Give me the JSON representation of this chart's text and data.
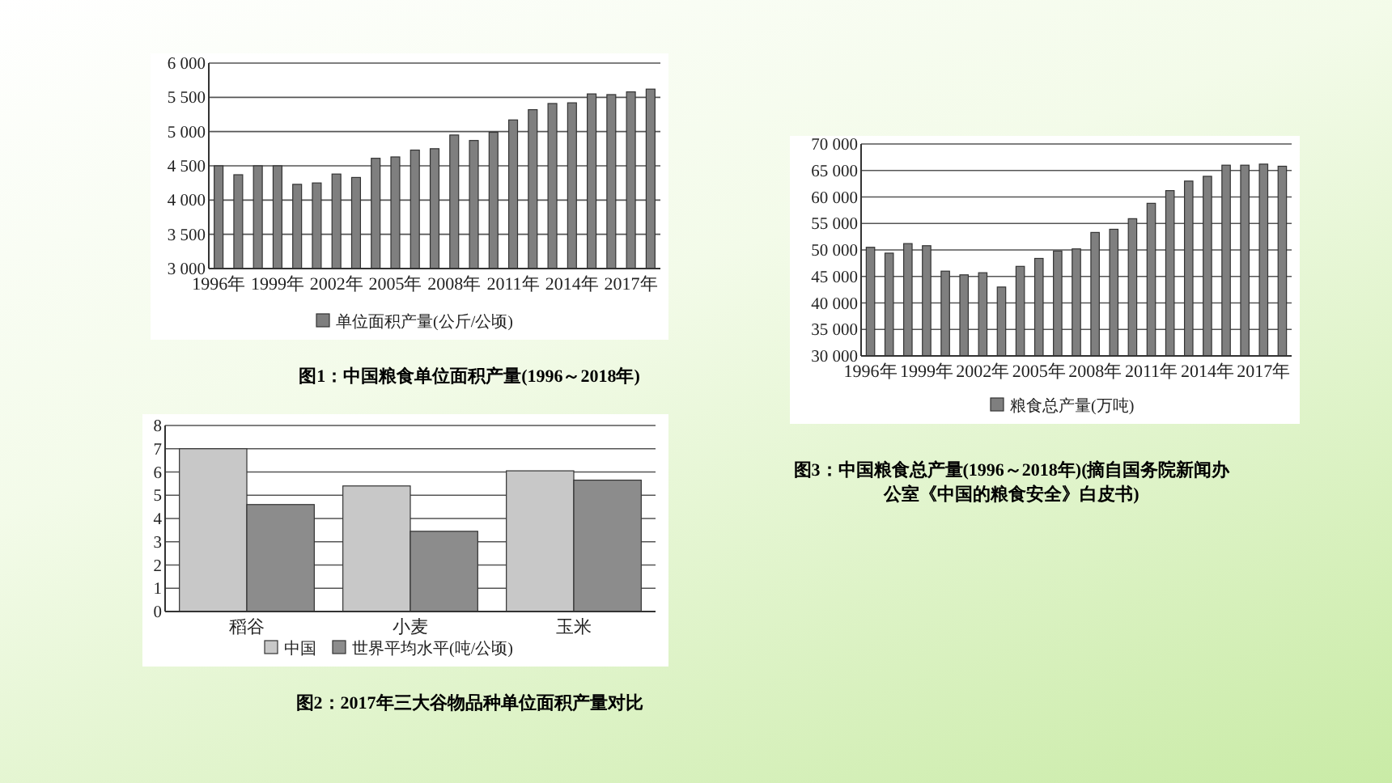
{
  "chart_data": [
    {
      "type": "bar",
      "categories": [
        "1996年",
        null,
        null,
        "1999年",
        null,
        null,
        "2002年",
        null,
        null,
        "2005年",
        null,
        null,
        "2008年",
        null,
        null,
        "2011年",
        null,
        null,
        "2014年",
        null,
        null,
        "2017年",
        null
      ],
      "series": [
        {
          "name": "单位面积产量(公斤/公顷)",
          "color": "#7f7f7f",
          "values": [
            4500,
            4370,
            4500,
            4500,
            4230,
            4250,
            4380,
            4330,
            4610,
            4630,
            4730,
            4750,
            4950,
            4870,
            4990,
            5170,
            5320,
            5410,
            5420,
            5550,
            5540,
            5580,
            5620
          ]
        }
      ],
      "ylim": [
        3000,
        6000
      ],
      "yticks": [
        {
          "value": 3000,
          "label": "3 000"
        },
        {
          "value": 3500,
          "label": "3 500"
        },
        {
          "value": 4000,
          "label": "4 000"
        },
        {
          "value": 4500,
          "label": "4 500"
        },
        {
          "value": 5000,
          "label": "5 000"
        },
        {
          "value": 5500,
          "label": "5 500"
        },
        {
          "value": 6000,
          "label": "6 000"
        }
      ],
      "grid": "y",
      "legend": "bottom",
      "annotations": [
        "图1：中国粮食单位面积产量(1996～2018年)"
      ]
    },
    {
      "type": "bar",
      "categories": [
        "稻谷",
        "小麦",
        "玉米"
      ],
      "series": [
        {
          "name": "中国",
          "color": "#c8c8c8",
          "values": [
            7.0,
            5.4,
            6.05
          ]
        },
        {
          "name": "世界平均水平(吨/公顷)",
          "color": "#8c8c8c",
          "values": [
            4.6,
            3.45,
            5.65
          ]
        }
      ],
      "ylim": [
        0,
        8
      ],
      "yticks": [
        0,
        1,
        2,
        3,
        4,
        5,
        6,
        7,
        8
      ],
      "grid": "y",
      "legend": "bottom",
      "annotations": [
        "图2：2017年三大谷物品种单位面积产量对比"
      ]
    },
    {
      "type": "bar",
      "categories": [
        "1996年",
        null,
        null,
        "1999年",
        null,
        null,
        "2002年",
        null,
        null,
        "2005年",
        null,
        null,
        "2008年",
        null,
        null,
        "2011年",
        null,
        null,
        "2014年",
        null,
        null,
        "2017年",
        null
      ],
      "series": [
        {
          "name": "粮食总产量(万吨)",
          "color": "#7f7f7f",
          "values": [
            50500,
            49400,
            51200,
            50800,
            46000,
            45300,
            45700,
            43000,
            46900,
            48400,
            49800,
            50200,
            53300,
            53900,
            55900,
            58800,
            61200,
            63000,
            63900,
            66000,
            66000,
            66200,
            65800
          ]
        }
      ],
      "ylim": [
        30000,
        70000
      ],
      "yticks": [
        {
          "value": 30000,
          "label": "30 000"
        },
        {
          "value": 35000,
          "label": "35 000"
        },
        {
          "value": 40000,
          "label": "40 000"
        },
        {
          "value": 45000,
          "label": "45 000"
        },
        {
          "value": 50000,
          "label": "50 000"
        },
        {
          "value": 55000,
          "label": "55 000"
        },
        {
          "value": 60000,
          "label": "60 000"
        },
        {
          "value": 65000,
          "label": "65 000"
        },
        {
          "value": 70000,
          "label": "70 000"
        }
      ],
      "grid": "y",
      "legend": "bottom",
      "annotations": [
        "图3：中国粮食总产量(1996～2018年)(摘自国务院新闻办公室《中国的粮食安全》白皮书)"
      ]
    }
  ]
}
